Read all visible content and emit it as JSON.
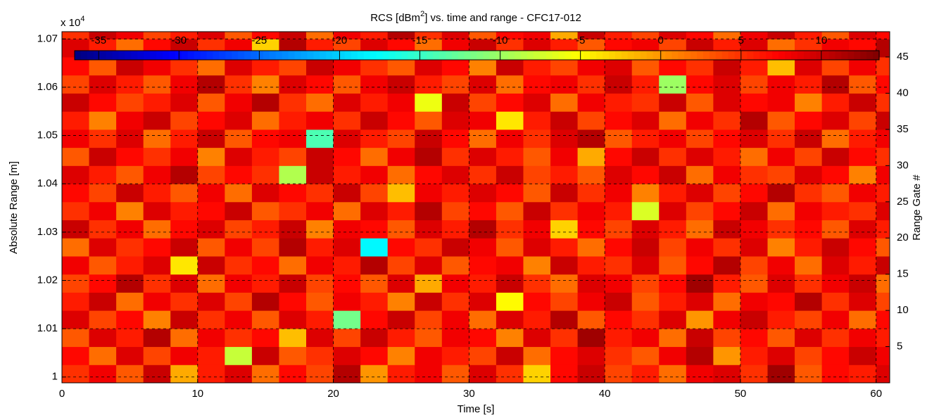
{
  "chart_data": {
    "type": "heatmap",
    "title": {
      "before": "RCS [dBm",
      "sup": "2",
      "after": "] vs. time and range - CFC17-012"
    },
    "x_label": "Time [s]",
    "y_label": "Absolute Range [m]",
    "y2_label": "Range Gate #",
    "y_multiplier": {
      "base": "x 10",
      "exponent": "4"
    },
    "xlim": [
      0,
      61
    ],
    "xticks": [
      0,
      10,
      20,
      30,
      40,
      50,
      60
    ],
    "ylim": [
      0.9988,
      1.0715
    ],
    "yticks": [
      1,
      1.01,
      1.02,
      1.03,
      1.04,
      1.05,
      1.06,
      1.07
    ],
    "y2lim": [
      0,
      48.5
    ],
    "y2ticks": [
      5,
      10,
      15,
      20,
      25,
      30,
      35,
      40,
      45
    ],
    "grid": true,
    "colormap": "jet",
    "clim": [
      -36.5,
      13.6
    ],
    "colorbar_ticks": [
      -35,
      -30,
      -25,
      -20,
      -15,
      -10,
      -5,
      0,
      5,
      10
    ],
    "x_bins": [
      0,
      2,
      4,
      6,
      8,
      10,
      12,
      14,
      16,
      18,
      20,
      22,
      24,
      26,
      28,
      30,
      32,
      34,
      36,
      38,
      40,
      42,
      44,
      46,
      48,
      50,
      52,
      54,
      56,
      58,
      60,
      61
    ],
    "y2_bins": [
      0,
      2.5,
      5,
      7.5,
      10,
      12.5,
      15,
      17.5,
      20,
      22.5,
      25,
      27.5,
      30,
      32.5,
      35,
      37.5,
      40,
      42.5,
      45,
      47.5,
      48.5
    ],
    "z": [
      [
        5,
        8,
        3,
        10,
        -1,
        6,
        9,
        2,
        7,
        4,
        11,
        0,
        6,
        8,
        3,
        9,
        5,
        -3,
        7,
        10,
        4,
        6,
        2,
        8,
        9,
        5,
        12,
        3,
        7,
        6,
        9
      ],
      [
        7,
        2,
        9,
        4,
        8,
        6,
        -8,
        10,
        3,
        5,
        9,
        7,
        1,
        8,
        6,
        4,
        10,
        2,
        7,
        9,
        5,
        3,
        8,
        11,
        0,
        6,
        9,
        4,
        7,
        10,
        8
      ],
      [
        3,
        9,
        6,
        11,
        2,
        8,
        5,
        7,
        -2,
        9,
        4,
        10,
        6,
        3,
        8,
        7,
        1,
        9,
        5,
        12,
        6,
        8,
        2,
        10,
        4,
        7,
        3,
        9,
        5,
        8,
        6
      ],
      [
        9,
        4,
        7,
        1,
        10,
        5,
        8,
        3,
        9,
        6,
        -12,
        7,
        10,
        4,
        8,
        2,
        9,
        6,
        11,
        3,
        7,
        5,
        9,
        0,
        8,
        10,
        6,
        4,
        8,
        2,
        7
      ],
      [
        6,
        10,
        2,
        8,
        5,
        9,
        4,
        11,
        7,
        3,
        8,
        6,
        1,
        10,
        5,
        9,
        -5,
        7,
        4,
        8,
        10,
        3,
        6,
        9,
        2,
        8,
        7,
        11,
        5,
        9,
        4
      ],
      [
        4,
        7,
        11,
        5,
        9,
        2,
        8,
        6,
        10,
        4,
        7,
        3,
        9,
        -1,
        8,
        6,
        10,
        5,
        2,
        9,
        8,
        4,
        7,
        12,
        6,
        3,
        9,
        5,
        8,
        10,
        2
      ],
      [
        8,
        3,
        6,
        9,
        -4,
        10,
        5,
        7,
        2,
        8,
        6,
        11,
        4,
        9,
        3,
        7,
        8,
        1,
        10,
        6,
        5,
        9,
        3,
        7,
        11,
        4,
        8,
        2,
        9,
        6,
        10
      ],
      [
        2,
        9,
        5,
        7,
        10,
        3,
        8,
        4,
        11,
        6,
        9,
        -18,
        7,
        5,
        10,
        8,
        3,
        9,
        6,
        2,
        7,
        10,
        4,
        8,
        5,
        9,
        1,
        6,
        10,
        7,
        3
      ],
      [
        10,
        5,
        8,
        2,
        7,
        9,
        4,
        6,
        10,
        1,
        8,
        7,
        3,
        9,
        6,
        11,
        5,
        8,
        -3,
        7,
        4,
        9,
        6,
        2,
        10,
        8,
        5,
        7,
        3,
        9,
        6
      ],
      [
        5,
        8,
        1,
        9,
        6,
        7,
        10,
        3,
        5,
        8,
        2,
        9,
        6,
        11,
        4,
        7,
        3,
        10,
        5,
        8,
        6,
        -7,
        9,
        4,
        7,
        10,
        2,
        8,
        6,
        5,
        9
      ],
      [
        7,
        4,
        10,
        6,
        3,
        8,
        2,
        9,
        7,
        5,
        10,
        4,
        -2,
        8,
        6,
        9,
        7,
        3,
        10,
        5,
        8,
        1,
        6,
        9,
        4,
        7,
        11,
        5,
        3,
        8,
        6
      ],
      [
        9,
        6,
        3,
        8,
        11,
        4,
        7,
        5,
        -9,
        10,
        6,
        8,
        2,
        7,
        9,
        5,
        10,
        4,
        6,
        3,
        9,
        7,
        10,
        2,
        8,
        5,
        4,
        9,
        7,
        1,
        8
      ],
      [
        3,
        10,
        7,
        5,
        8,
        1,
        9,
        6,
        4,
        10,
        7,
        2,
        8,
        11,
        5,
        9,
        6,
        3,
        8,
        -1,
        7,
        10,
        5,
        9,
        6,
        2,
        8,
        4,
        10,
        7,
        5
      ],
      [
        8,
        5,
        9,
        2,
        6,
        10,
        3,
        7,
        8,
        -14,
        9,
        6,
        4,
        10,
        7,
        2,
        8,
        5,
        9,
        11,
        3,
        6,
        8,
        4,
        7,
        9,
        5,
        10,
        2,
        6,
        8
      ],
      [
        6,
        1,
        8,
        10,
        4,
        7,
        9,
        2,
        6,
        8,
        5,
        10,
        7,
        3,
        9,
        8,
        -4,
        6,
        10,
        4,
        7,
        9,
        2,
        8,
        5,
        11,
        3,
        7,
        9,
        4,
        10
      ],
      [
        10,
        7,
        4,
        6,
        9,
        3,
        8,
        11,
        5,
        2,
        9,
        6,
        8,
        -6,
        10,
        4,
        7,
        9,
        2,
        8,
        6,
        5,
        10,
        3,
        9,
        7,
        8,
        1,
        6,
        10,
        5
      ],
      [
        4,
        9,
        6,
        3,
        8,
        11,
        5,
        1,
        9,
        7,
        3,
        8,
        10,
        6,
        4,
        9,
        2,
        7,
        8,
        5,
        10,
        6,
        -10,
        7,
        9,
        4,
        8,
        6,
        11,
        3,
        7
      ],
      [
        7,
        3,
        10,
        8,
        5,
        2,
        9,
        6,
        4,
        10,
        8,
        5,
        3,
        9,
        7,
        1,
        10,
        6,
        4,
        8,
        9,
        3,
        7,
        5,
        10,
        6,
        -2,
        9,
        4,
        8,
        5
      ],
      [
        9,
        6,
        2,
        7,
        10,
        5,
        8,
        -3,
        11,
        6,
        4,
        9,
        7,
        2,
        8,
        10,
        5,
        9,
        6,
        3,
        7,
        8,
        4,
        10,
        6,
        9,
        2,
        5,
        8,
        7,
        11
      ],
      [
        5,
        10,
        8,
        4,
        6,
        9,
        3,
        7,
        10,
        2,
        8,
        6,
        11,
        5,
        9,
        3,
        7,
        8,
        -1,
        10,
        6,
        4,
        9,
        7,
        2,
        8,
        10,
        6,
        3,
        9,
        7
      ]
    ]
  }
}
